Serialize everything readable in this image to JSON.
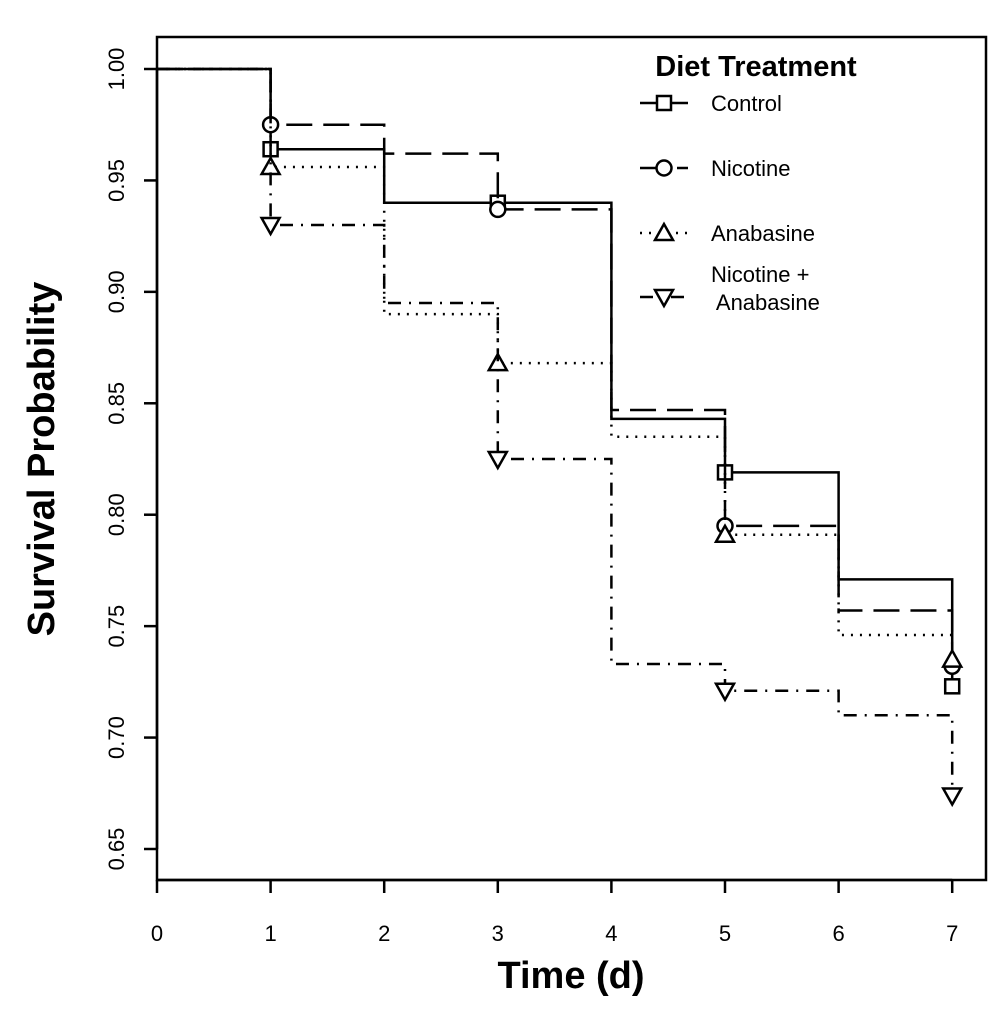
{
  "chart_data": {
    "type": "line",
    "step": true,
    "xlabel": "Time (d)",
    "ylabel": "Survival Probability",
    "xlim": [
      0,
      7
    ],
    "ylim": [
      0.65,
      1.0
    ],
    "x_ticks": [
      "0",
      "1",
      "2",
      "3",
      "4",
      "5",
      "6",
      "7"
    ],
    "y_ticks": [
      "0.65",
      "0.70",
      "0.75",
      "0.80",
      "0.85",
      "0.90",
      "0.95",
      "1.00"
    ],
    "grid": false,
    "legend_title": "Diet Treatment",
    "legend_position": "top-right",
    "x": [
      0,
      1,
      2,
      3,
      4,
      5,
      6,
      7
    ],
    "series": [
      {
        "name": "Control",
        "line_style": "solid",
        "marker": "square",
        "values": [
          1.0,
          0.964,
          0.94,
          0.94,
          0.843,
          0.819,
          0.771,
          0.723
        ]
      },
      {
        "name": "Nicotine",
        "line_style": "dashed",
        "marker": "circle",
        "values": [
          1.0,
          0.975,
          0.962,
          0.937,
          0.847,
          0.795,
          0.757,
          0.732
        ]
      },
      {
        "name": "Anabasine",
        "line_style": "dotted",
        "marker": "triangle-up",
        "values": [
          1.0,
          0.956,
          0.89,
          0.868,
          0.835,
          0.791,
          0.746,
          0.735
        ]
      },
      {
        "name": "Nicotine +\n Anabasine",
        "line_style": "dotdash",
        "marker": "triangle-down",
        "values": [
          1.0,
          0.93,
          0.895,
          0.825,
          0.733,
          0.721,
          0.71,
          0.674
        ]
      }
    ]
  }
}
